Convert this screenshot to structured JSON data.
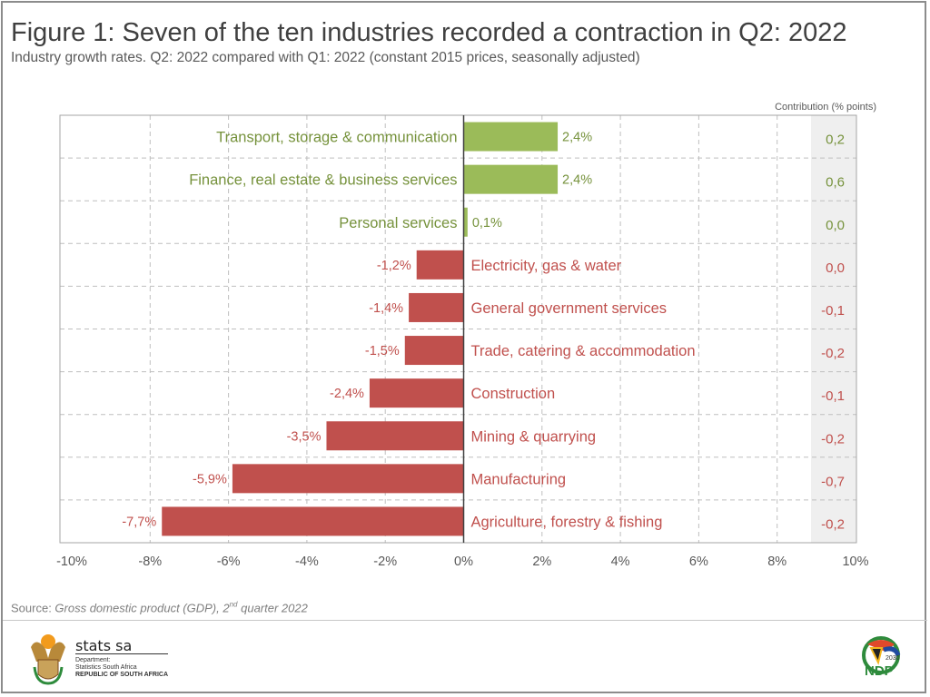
{
  "title": "Figure 1: Seven of the ten industries recorded a contraction in Q2: 2022",
  "subtitle": "Industry growth rates. Q2: 2022 compared with Q1: 2022 (constant 2015 prices, seasonally adjusted)",
  "source": {
    "prefix": "Source: ",
    "text": "Gross domestic product (GDP), 2",
    "sup": "nd",
    "suffix": " quarter 2022"
  },
  "logo": {
    "name": "stats sa",
    "line1": "Department:",
    "line2": "Statistics South Africa",
    "line3": "REPUBLIC OF SOUTH AFRICA",
    "ndp": "NDP",
    "ndp_year": "2030"
  },
  "chart_data": {
    "type": "bar",
    "orientation": "horizontal",
    "categories": [
      "Transport, storage & communication",
      "Finance, real estate & business services",
      "Personal services",
      "Electricity, gas & water",
      "General government services",
      "Trade, catering & accommodation",
      "Construction",
      "Mining & quarrying",
      "Manufacturing",
      "Agriculture, forestry & fishing"
    ],
    "values": [
      2.4,
      2.4,
      0.1,
      -1.2,
      -1.4,
      -1.5,
      -2.4,
      -3.5,
      -5.9,
      -7.7
    ],
    "data_labels": [
      "2,4%",
      "2,4%",
      "0,1%",
      "-1,2%",
      "-1,4%",
      "-1,5%",
      "-2,4%",
      "-3,5%",
      "-5,9%",
      "-7,7%"
    ],
    "contribution_header": "Contribution (% points)",
    "contributions": [
      "0,2",
      "0,6",
      "0,0",
      "0,0",
      "-0,1",
      "-0,2",
      "-0,1",
      "-0,2",
      "-0,7",
      "-0,2"
    ],
    "xlim": [
      -10,
      10
    ],
    "xticks": [
      "-10%",
      "-8%",
      "-6%",
      "-4%",
      "-2%",
      "0%",
      "2%",
      "4%",
      "6%",
      "8%",
      "10%"
    ],
    "grid": true,
    "colors": {
      "positive": "#9bbb59",
      "negative": "#c0504d",
      "positive_text": "#76923c",
      "negative_text": "#c0504d"
    }
  }
}
